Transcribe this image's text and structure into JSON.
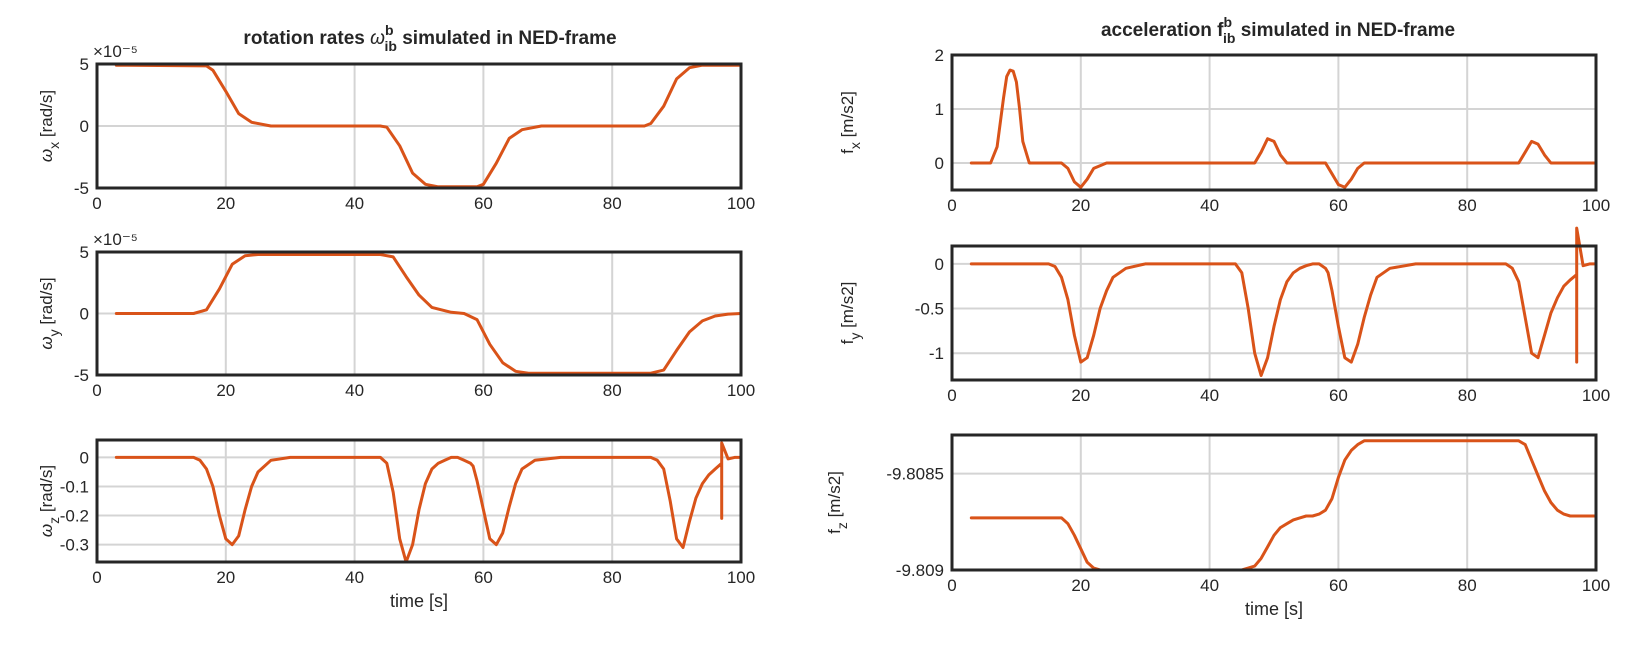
{
  "colors": {
    "series": "#d95319",
    "axis": "#262626",
    "grid": "#d4d4d4"
  },
  "titles": {
    "left": {
      "prefix": "rotation rates ",
      "symbol": "ω",
      "sup": "b",
      "sub": "ib",
      "suffix": " simulated in NED-frame"
    },
    "right": {
      "prefix": "acceleration ",
      "symbol": "f",
      "sup": "b",
      "sub": "ib",
      "suffix": " simulated in NED-frame"
    }
  },
  "chart_data": [
    {
      "id": "wx",
      "type": "line",
      "ylabel_symbol": "ω",
      "ylabel_sub": "x",
      "ylabel_unit": "[rad/s]",
      "xlim": [
        0,
        100
      ],
      "ylim": [
        -5,
        5
      ],
      "xticks": [
        "0",
        "20",
        "40",
        "60",
        "80",
        "100"
      ],
      "yticks": [
        {
          "v": -5,
          "t": "-5"
        },
        {
          "v": 0,
          "t": "0"
        },
        {
          "v": 5,
          "t": "5"
        }
      ],
      "exponent": "×10⁻⁵",
      "grid": true,
      "xlabel": "",
      "series": [
        {
          "x": [
            3,
            17,
            18,
            20,
            22,
            24,
            27,
            44,
            45,
            47,
            49,
            51,
            53,
            59,
            60,
            62,
            64,
            66,
            69,
            85,
            86,
            88,
            90,
            92,
            94,
            100
          ],
          "y": [
            4.9,
            4.85,
            4.5,
            2.8,
            1,
            0.3,
            0,
            0,
            -0.1,
            -1.6,
            -3.8,
            -4.7,
            -4.9,
            -4.9,
            -4.7,
            -3,
            -1,
            -0.3,
            0,
            0,
            0.2,
            1.6,
            3.8,
            4.7,
            4.9,
            4.9
          ]
        }
      ]
    },
    {
      "id": "wy",
      "type": "line",
      "ylabel_symbol": "ω",
      "ylabel_sub": "y",
      "ylabel_unit": "[rad/s]",
      "xlim": [
        0,
        100
      ],
      "ylim": [
        -5,
        5
      ],
      "xticks": [
        "0",
        "20",
        "40",
        "60",
        "80",
        "100"
      ],
      "yticks": [
        {
          "v": -5,
          "t": "-5"
        },
        {
          "v": 0,
          "t": "0"
        },
        {
          "v": 5,
          "t": "5"
        }
      ],
      "exponent": "×10⁻⁵",
      "grid": true,
      "xlabel": "",
      "series": [
        {
          "x": [
            3,
            10,
            15,
            17,
            19,
            21,
            23,
            25,
            44,
            46,
            48,
            50,
            52,
            55,
            57,
            59,
            61,
            63,
            65,
            67,
            86,
            88,
            90,
            92,
            94,
            96,
            98,
            100
          ],
          "y": [
            0,
            0,
            0,
            0.3,
            2,
            4,
            4.7,
            4.8,
            4.8,
            4.6,
            3,
            1.5,
            0.5,
            0.1,
            0,
            -0.5,
            -2.5,
            -4,
            -4.7,
            -4.85,
            -4.85,
            -4.6,
            -3,
            -1.5,
            -0.6,
            -0.2,
            -0.05,
            0
          ]
        }
      ]
    },
    {
      "id": "wz",
      "type": "line",
      "ylabel_symbol": "ω",
      "ylabel_sub": "z",
      "ylabel_unit": "[rad/s]",
      "xlim": [
        0,
        100
      ],
      "ylim": [
        -0.36,
        0.06
      ],
      "xticks": [
        "0",
        "20",
        "40",
        "60",
        "80",
        "100"
      ],
      "yticks": [
        {
          "v": 0,
          "t": "0"
        },
        {
          "v": -0.1,
          "t": "-0.1"
        },
        {
          "v": -0.2,
          "t": "-0.2"
        },
        {
          "v": -0.3,
          "t": "-0.3"
        }
      ],
      "grid": true,
      "xlabel": "time [s]",
      "series": [
        {
          "x": [
            3,
            15,
            16,
            17,
            18,
            19,
            20,
            21,
            22,
            23,
            24,
            25,
            27,
            30,
            44,
            45,
            46,
            47,
            48,
            49,
            50,
            51,
            52,
            53,
            54,
            55,
            56,
            57,
            58,
            58.4,
            59,
            60,
            61,
            62,
            63,
            64,
            65,
            66,
            68,
            72,
            86,
            87,
            88,
            89,
            90,
            91,
            92,
            93,
            94,
            95,
            96,
            97,
            97,
            97,
            98,
            99,
            100
          ],
          "y": [
            0,
            0,
            -0.01,
            -0.04,
            -0.1,
            -0.2,
            -0.28,
            -0.3,
            -0.27,
            -0.18,
            -0.1,
            -0.05,
            -0.01,
            0,
            0,
            -0.02,
            -0.12,
            -0.28,
            -0.36,
            -0.3,
            -0.18,
            -0.09,
            -0.04,
            -0.02,
            -0.01,
            0,
            0,
            -0.01,
            -0.02,
            -0.03,
            -0.08,
            -0.18,
            -0.28,
            -0.3,
            -0.26,
            -0.17,
            -0.09,
            -0.04,
            -0.01,
            0,
            0,
            -0.01,
            -0.04,
            -0.15,
            -0.28,
            -0.31,
            -0.22,
            -0.14,
            -0.09,
            -0.06,
            -0.04,
            -0.02,
            -0.21,
            0.05,
            -0.005,
            0,
            0
          ]
        }
      ]
    },
    {
      "id": "fx",
      "type": "line",
      "ylabel_symbol": "f",
      "ylabel_sub": "x",
      "ylabel_unit": "[m/s2]",
      "xlim": [
        0,
        100
      ],
      "ylim": [
        -0.5,
        2
      ],
      "xticks": [
        "0",
        "20",
        "40",
        "60",
        "80",
        "100"
      ],
      "yticks": [
        {
          "v": 0,
          "t": "0"
        },
        {
          "v": 1,
          "t": "1"
        },
        {
          "v": 2,
          "t": "2"
        }
      ],
      "grid": true,
      "xlabel": "",
      "series": [
        {
          "x": [
            3,
            6,
            7,
            8,
            8.5,
            9,
            9.5,
            10,
            10.5,
            11,
            12,
            13,
            17,
            18,
            19,
            20,
            21,
            22,
            24,
            47,
            48,
            49,
            50,
            51,
            52,
            58,
            59,
            60,
            61,
            62,
            63,
            64,
            88,
            89,
            90,
            91,
            92,
            93,
            100
          ],
          "y": [
            0,
            0,
            0.3,
            1.2,
            1.6,
            1.72,
            1.7,
            1.5,
            1,
            0.4,
            0,
            0,
            0,
            -0.1,
            -0.35,
            -0.45,
            -0.3,
            -0.1,
            0,
            0,
            0.2,
            0.45,
            0.4,
            0.15,
            0,
            0,
            -0.2,
            -0.4,
            -0.45,
            -0.3,
            -0.1,
            0,
            0,
            0.2,
            0.4,
            0.35,
            0.15,
            0,
            0
          ]
        }
      ]
    },
    {
      "id": "fy",
      "type": "line",
      "ylabel_symbol": "f",
      "ylabel_sub": "y",
      "ylabel_unit": "[m/s2]",
      "xlim": [
        0,
        100
      ],
      "ylim": [
        -1.3,
        0.2
      ],
      "xticks": [
        "0",
        "20",
        "40",
        "60",
        "80",
        "100"
      ],
      "yticks": [
        {
          "v": 0,
          "t": "0"
        },
        {
          "v": -0.5,
          "t": "-0.5"
        },
        {
          "v": -1,
          "t": "-1"
        }
      ],
      "grid": true,
      "xlabel": "",
      "series": [
        {
          "x": [
            3,
            15,
            16,
            17,
            18,
            19,
            20,
            21,
            22,
            23,
            24,
            25,
            27,
            30,
            44,
            45,
            46,
            47,
            48,
            49,
            50,
            51,
            52,
            53,
            54,
            55,
            56,
            57,
            58,
            58.4,
            59,
            60,
            61,
            62,
            63,
            64,
            65,
            66,
            68,
            72,
            86,
            87,
            88,
            89,
            90,
            91,
            92,
            93,
            94,
            95,
            96,
            97,
            97,
            97,
            98,
            99,
            100
          ],
          "y": [
            0,
            0,
            -0.03,
            -0.15,
            -0.4,
            -0.8,
            -1.1,
            -1.05,
            -0.8,
            -0.5,
            -0.3,
            -0.15,
            -0.05,
            0,
            0,
            -0.1,
            -0.5,
            -1,
            -1.25,
            -1.05,
            -0.7,
            -0.4,
            -0.2,
            -0.1,
            -0.05,
            -0.02,
            0,
            0,
            -0.05,
            -0.1,
            -0.3,
            -0.7,
            -1.05,
            -1.1,
            -0.9,
            -0.6,
            -0.35,
            -0.15,
            -0.05,
            0,
            0,
            -0.05,
            -0.2,
            -0.6,
            -1,
            -1.05,
            -0.8,
            -0.55,
            -0.38,
            -0.25,
            -0.18,
            -0.12,
            -1.1,
            0.4,
            -0.02,
            0,
            0
          ]
        }
      ]
    },
    {
      "id": "fz",
      "type": "line",
      "ylabel_symbol": "f",
      "ylabel_sub": "z",
      "ylabel_unit": "[m/s2]",
      "xlim": [
        0,
        100
      ],
      "ylim": [
        -9.809,
        -9.8083
      ],
      "xticks": [
        "0",
        "20",
        "40",
        "60",
        "80",
        "100"
      ],
      "yticks": [
        {
          "v": -9.809,
          "t": "-9.809"
        },
        {
          "v": -9.8085,
          "t": "-9.8085"
        }
      ],
      "grid": true,
      "xlabel": "time [s]",
      "series": [
        {
          "x": [
            3,
            16,
            17,
            18,
            19,
            20,
            21,
            22,
            23,
            24,
            25,
            27,
            45,
            46,
            47,
            48,
            49,
            50,
            51,
            52,
            53,
            54,
            55,
            56,
            57,
            58,
            59,
            60,
            61,
            62,
            63,
            64,
            65,
            66,
            68,
            86,
            87,
            88,
            89,
            90,
            91,
            92,
            93,
            94,
            95,
            96,
            97,
            98,
            100
          ],
          "y": [
            -9.80873,
            -9.80873,
            -9.80873,
            -9.80876,
            -9.80882,
            -9.80889,
            -9.80896,
            -9.80899,
            -9.809,
            -9.809,
            -9.809,
            -9.809,
            -9.809,
            -9.80899,
            -9.80898,
            -9.80894,
            -9.80888,
            -9.80882,
            -9.80878,
            -9.80876,
            -9.80874,
            -9.80873,
            -9.80872,
            -9.80872,
            -9.80871,
            -9.80869,
            -9.80863,
            -9.80852,
            -9.80843,
            -9.80838,
            -9.80835,
            -9.80833,
            -9.80833,
            -9.80833,
            -9.80833,
            -9.80833,
            -9.80833,
            -9.80833,
            -9.80835,
            -9.80843,
            -9.80851,
            -9.80859,
            -9.80865,
            -9.80869,
            -9.80871,
            -9.80872,
            -9.80872,
            -9.80872,
            -9.80872
          ]
        }
      ]
    }
  ]
}
